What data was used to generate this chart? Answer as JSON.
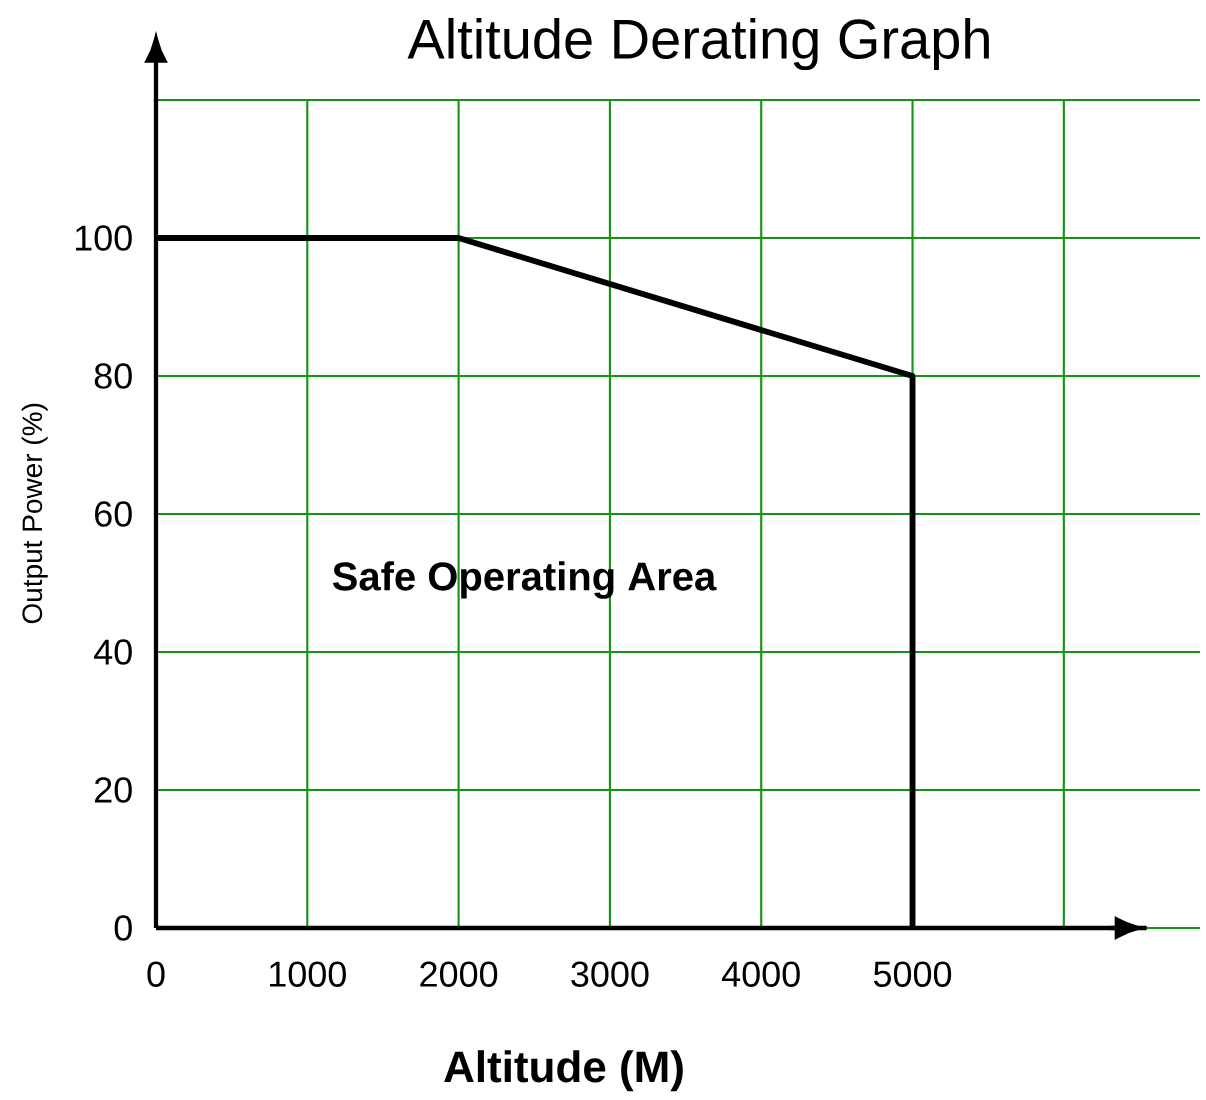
{
  "chart_data": {
    "type": "line",
    "title": "Altitude Derating Graph",
    "xlabel": "Altitude (M)",
    "ylabel": "Output Power (%)",
    "annotations": [
      "Safe Operating Area"
    ],
    "xlim": [
      0,
      6900
    ],
    "ylim": [
      0,
      120
    ],
    "xticks": [
      0,
      1000,
      2000,
      3000,
      4000,
      5000,
      {
        "value": 6000,
        "label": null
      }
    ],
    "yticks": [
      0,
      20,
      40,
      60,
      80,
      100,
      {
        "value": 120,
        "label": null
      }
    ],
    "grid": true,
    "marker": "none",
    "line_style": "solid",
    "series": [
      {
        "color": "#000000",
        "x": [
          0,
          2000,
          5000,
          5000
        ],
        "values": [
          100,
          100,
          80,
          0
        ]
      }
    ]
  }
}
